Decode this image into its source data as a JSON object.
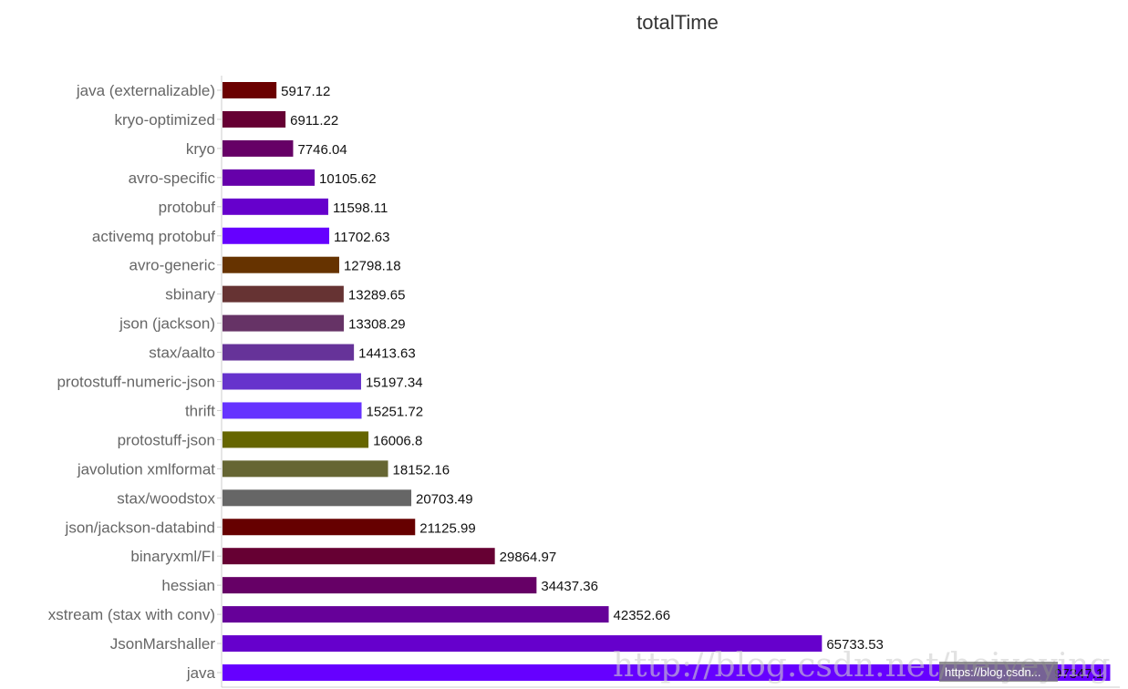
{
  "chart_data": {
    "type": "bar",
    "orientation": "horizontal",
    "title": "totalTime",
    "xlabel": "",
    "ylabel": "",
    "xlim": [
      0,
      98500
    ],
    "grid": false,
    "legend": "none",
    "categories": [
      "java (externalizable)",
      "kryo-optimized",
      "kryo",
      "avro-specific",
      "protobuf",
      "activemq protobuf",
      "avro-generic",
      "sbinary",
      "json (jackson)",
      "stax/aalto",
      "protostuff-numeric-json",
      "thrift",
      "protostuff-json",
      "javolution xmlformat",
      "stax/woodstox",
      "json/jackson-databind",
      "binaryxml/FI",
      "hessian",
      "xstream (stax with conv)",
      "JsonMarshaller",
      "java"
    ],
    "values": [
      5917.12,
      6911.22,
      7746.04,
      10105.62,
      11598.11,
      11702.63,
      12798.18,
      13289.65,
      13308.29,
      14413.63,
      15197.34,
      15251.72,
      16006.8,
      18152.16,
      20703.49,
      21125.99,
      29864.97,
      34437.36,
      42352.66,
      65733.53,
      97347.1
    ],
    "value_labels": [
      "5917.12",
      "6911.22",
      "7746.04",
      "10105.62",
      "11598.11",
      "11702.63",
      "12798.18",
      "13289.65",
      "13308.29",
      "14413.63",
      "15197.34",
      "15251.72",
      "16006.8",
      "18152.16",
      "20703.49",
      "21125.99",
      "29864.97",
      "34437.36",
      "42352.66",
      "65733.53",
      "97347.1"
    ],
    "colors": [
      "#6b0000",
      "#660033",
      "#660066",
      "#6600aa",
      "#6600cc",
      "#6600ff",
      "#663300",
      "#663333",
      "#663366",
      "#663399",
      "#6633cc",
      "#6633ff",
      "#666600",
      "#666633",
      "#666666",
      "#660000",
      "#660033",
      "#660066",
      "#660099",
      "#6600cc",
      "#6600ff"
    ],
    "axis_color": "#cccccc"
  },
  "watermark": {
    "text": "http://blog.csdn.net/heiyeying",
    "badge": "https://blog.csdn..."
  }
}
